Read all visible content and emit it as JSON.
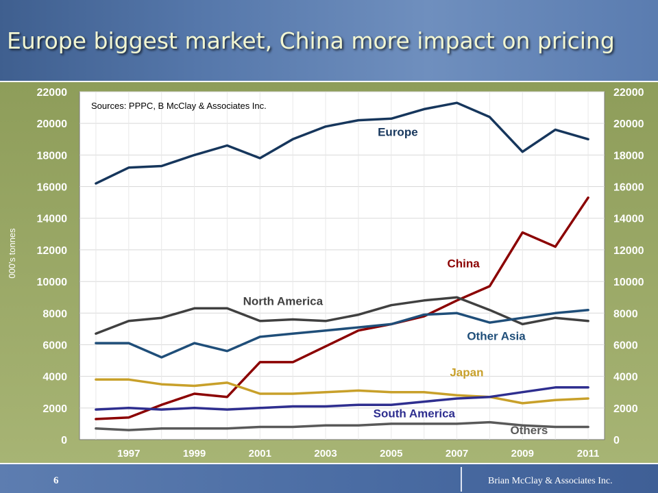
{
  "slide": {
    "title": "Europe biggest market, China more impact on pricing",
    "page_number": "6",
    "footer_credit": "Brian McClay & Associates Inc."
  },
  "colors": {
    "header": "#5577aa",
    "chart_background": "#9aa864",
    "plot_background": "#ffffff"
  },
  "chart_data": {
    "type": "line",
    "source_note": "Sources: PPPC, B McClay & Associates Inc.",
    "ylabel": "000's tonnes",
    "xlabel": "",
    "ylim": [
      0,
      22000
    ],
    "y_ticks": [
      0,
      2000,
      4000,
      6000,
      8000,
      10000,
      12000,
      14000,
      16000,
      18000,
      20000,
      22000
    ],
    "xlim": [
      1995.5,
      2011.5
    ],
    "x_ticks": [
      1997,
      1999,
      2001,
      2003,
      2005,
      2007,
      2009,
      2011
    ],
    "x": [
      1996,
      1997,
      1998,
      1999,
      2000,
      2001,
      2002,
      2003,
      2004,
      2005,
      2006,
      2007,
      2008,
      2009,
      2010,
      2011
    ],
    "grid": true,
    "series": [
      {
        "name": "Europe",
        "color": "#16365c",
        "values": [
          16200,
          17200,
          17300,
          18000,
          18600,
          17800,
          19000,
          19800,
          20200,
          20300,
          20900,
          21300,
          20400,
          18200,
          19600,
          19000
        ]
      },
      {
        "name": "China",
        "color": "#8b0000",
        "values": [
          1300,
          1400,
          2200,
          2900,
          2700,
          4900,
          4900,
          5900,
          6900,
          7300,
          7800,
          8800,
          9700,
          13100,
          12200,
          15300
        ]
      },
      {
        "name": "North America",
        "color": "#404040",
        "values": [
          6700,
          7500,
          7700,
          8300,
          8300,
          7500,
          7600,
          7500,
          7900,
          8500,
          8800,
          9000,
          8200,
          7300,
          7700,
          7500
        ]
      },
      {
        "name": "Other Asia",
        "color": "#1f4e79",
        "values": [
          6100,
          6100,
          5200,
          6100,
          5600,
          6500,
          6700,
          6900,
          7100,
          7300,
          7900,
          8000,
          7400,
          7700,
          8000,
          8200
        ]
      },
      {
        "name": "Japan",
        "color": "#c8a02a",
        "values": [
          3800,
          3800,
          3500,
          3400,
          3600,
          2900,
          2900,
          3000,
          3100,
          3000,
          3000,
          2800,
          2700,
          2300,
          2500,
          2600
        ]
      },
      {
        "name": "South America",
        "color": "#2e2e8f",
        "values": [
          1900,
          2000,
          1900,
          2000,
          1900,
          2000,
          2100,
          2100,
          2200,
          2200,
          2400,
          2600,
          2700,
          3000,
          3300,
          3300
        ]
      },
      {
        "name": "Others",
        "color": "#595959",
        "values": [
          700,
          600,
          700,
          700,
          700,
          800,
          800,
          900,
          900,
          1000,
          1000,
          1000,
          1100,
          900,
          800,
          800
        ]
      }
    ]
  }
}
